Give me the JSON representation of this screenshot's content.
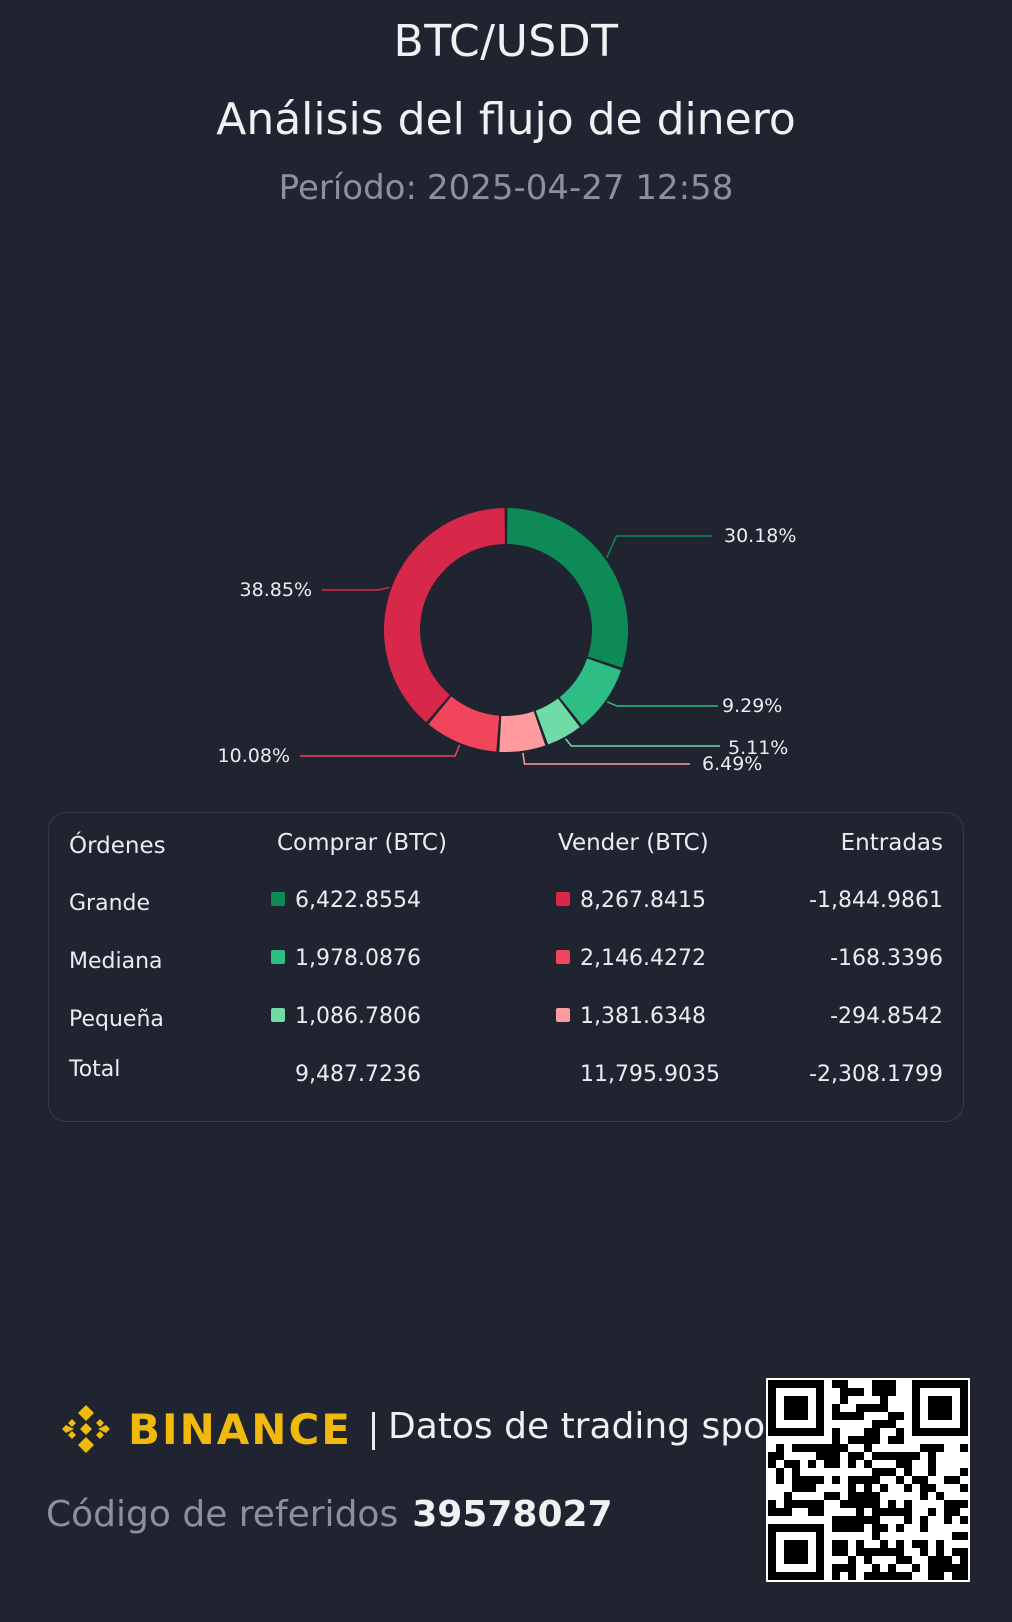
{
  "header": {
    "pair": "BTC/USDT",
    "title": "Análisis del flujo de dinero",
    "period_label": "Período:",
    "period_value": "2025-04-27 12:58"
  },
  "chart_data": {
    "type": "pie",
    "categories": [
      "Comprar Grande",
      "Comprar Mediana",
      "Comprar Pequeña",
      "Vender Pequeña",
      "Vender Mediana",
      "Vender Grande"
    ],
    "values": [
      30.18,
      9.29,
      5.11,
      6.49,
      10.08,
      38.85
    ],
    "labels": [
      "30.18%",
      "9.29%",
      "5.11%",
      "6.49%",
      "10.08%",
      "38.85%"
    ],
    "colors": [
      "#0e8a57",
      "#2ebd85",
      "#6fdca8",
      "#ff9a9e",
      "#f0455a",
      "#d8284a"
    ],
    "donut": true
  },
  "table": {
    "headers": [
      "Órdenes",
      "Comprar (BTC)",
      "Vender (BTC)",
      "Entradas"
    ],
    "rows": [
      {
        "order": "Grande",
        "buy": "6,422.8554",
        "sell": "8,267.8415",
        "inflow": "-1,844.9861",
        "buy_color": "#0e8a57",
        "sell_color": "#d8284a"
      },
      {
        "order": "Mediana",
        "buy": "1,978.0876",
        "sell": "2,146.4272",
        "inflow": "-168.3396",
        "buy_color": "#2ebd85",
        "sell_color": "#f0455a"
      },
      {
        "order": "Pequeña",
        "buy": "1,086.7806",
        "sell": "1,381.6348",
        "inflow": "-294.8542",
        "buy_color": "#6fdca8",
        "sell_color": "#ff9a9e"
      }
    ],
    "total": {
      "order": "Total",
      "buy": "9,487.7236",
      "sell": "11,795.9035",
      "inflow": "-2,308.1799"
    }
  },
  "footer": {
    "brand": "BINANCE",
    "brand_color": "#f0b90b",
    "tagline": "Datos de trading spot",
    "referral_label": "Código de referidos",
    "referral_code": "39578027"
  }
}
